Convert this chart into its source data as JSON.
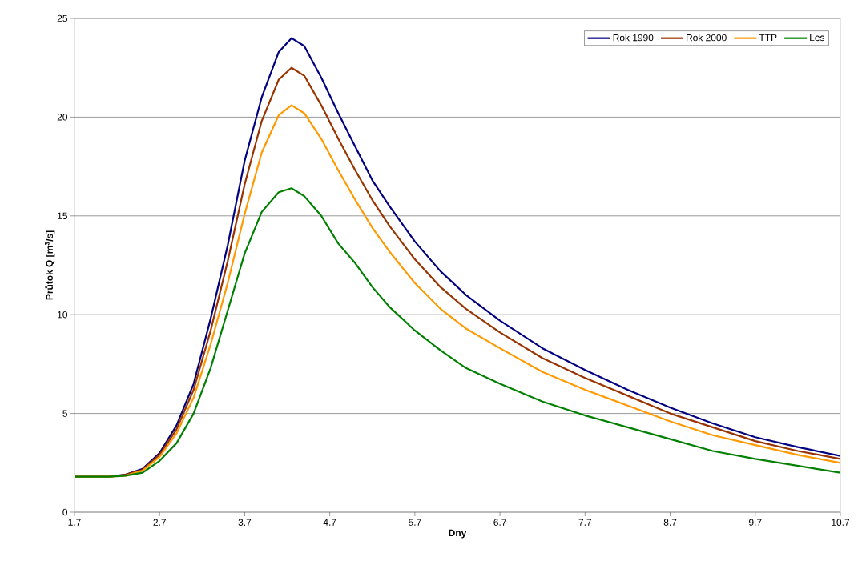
{
  "chart_data": {
    "type": "line",
    "xlabel": "Dny",
    "ylabel": "Průtok Q [m$^{3}$/s]",
    "x": [
      1.7,
      2.1,
      2.3,
      2.5,
      2.7,
      2.9,
      3.1,
      3.3,
      3.5,
      3.7,
      3.9,
      4.1,
      4.25,
      4.4,
      4.6,
      4.8,
      5.0,
      5.2,
      5.4,
      5.7,
      6.0,
      6.3,
      6.7,
      7.2,
      7.7,
      8.2,
      8.7,
      9.2,
      9.7,
      10.2,
      10.7
    ],
    "series": [
      {
        "name": "Rok 1990",
        "color": "#000080",
        "values": [
          1.8,
          1.8,
          1.9,
          2.2,
          3.0,
          4.4,
          6.5,
          9.8,
          13.5,
          17.8,
          21.0,
          23.3,
          24.0,
          23.6,
          22.0,
          20.2,
          18.5,
          16.8,
          15.5,
          13.7,
          12.2,
          11.0,
          9.7,
          8.3,
          7.2,
          6.2,
          5.3,
          4.5,
          3.8,
          3.3,
          2.85
        ]
      },
      {
        "name": "Rok 2000",
        "color": "#993300",
        "values": [
          1.8,
          1.8,
          1.9,
          2.15,
          2.9,
          4.2,
          6.2,
          9.2,
          12.7,
          16.6,
          19.8,
          21.9,
          22.5,
          22.1,
          20.6,
          18.9,
          17.3,
          15.8,
          14.5,
          12.8,
          11.4,
          10.3,
          9.1,
          7.8,
          6.8,
          5.9,
          5.0,
          4.3,
          3.6,
          3.1,
          2.7
        ]
      },
      {
        "name": "TTP",
        "color": "#ff9900",
        "values": [
          1.8,
          1.8,
          1.85,
          2.1,
          2.8,
          4.0,
          5.8,
          8.5,
          11.6,
          15.1,
          18.2,
          20.1,
          20.6,
          20.2,
          18.9,
          17.3,
          15.8,
          14.4,
          13.2,
          11.6,
          10.3,
          9.3,
          8.3,
          7.1,
          6.2,
          5.4,
          4.6,
          3.9,
          3.4,
          2.9,
          2.5
        ]
      },
      {
        "name": "Les",
        "color": "#008000",
        "values": [
          1.8,
          1.8,
          1.85,
          2.0,
          2.6,
          3.5,
          5.0,
          7.3,
          10.2,
          13.1,
          15.2,
          16.2,
          16.4,
          16.0,
          15.0,
          13.6,
          12.6,
          11.4,
          10.4,
          9.2,
          8.2,
          7.3,
          6.5,
          5.6,
          4.9,
          4.3,
          3.7,
          3.1,
          2.7,
          2.35,
          2.0
        ]
      }
    ],
    "xlim": [
      1.7,
      10.7
    ],
    "xticks": [
      1.7,
      2.7,
      3.7,
      4.7,
      5.7,
      6.7,
      7.7,
      8.7,
      9.7,
      10.7
    ],
    "ylim": [
      0,
      25
    ],
    "yticks": [
      0,
      5,
      10,
      15,
      20,
      25
    ],
    "grid": "y",
    "legend": "top right",
    "marker": "none",
    "line_style": "solid"
  }
}
